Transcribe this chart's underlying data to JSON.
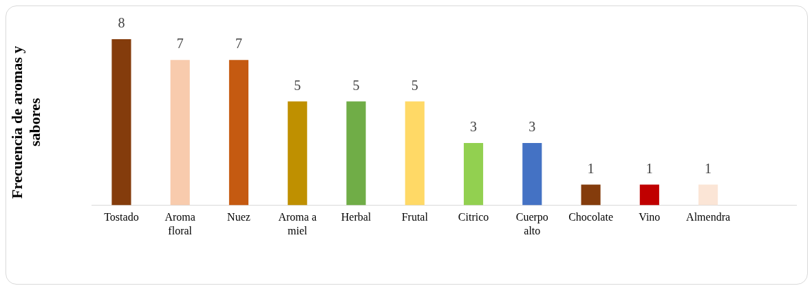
{
  "chart_data": {
    "type": "bar",
    "ylabel": "Frecuencia de aromas y sabores",
    "categories": [
      "Tostado",
      "Aroma floral",
      "Nuez",
      "Aroma a miel",
      "Herbal",
      "Frutal",
      "Citrico",
      "Cuerpo alto",
      "Chocolate",
      "Vino",
      "Almendra",
      null
    ],
    "values": [
      8,
      7,
      7,
      5,
      5,
      5,
      3,
      3,
      1,
      1,
      1,
      null
    ],
    "colors": [
      "#843c0c",
      "#f8cbad",
      "#c55a11",
      "#bf9000",
      "#70ad47",
      "#ffd966",
      "#92d050",
      "#4472c4",
      "#843c0c",
      "#c00000",
      "#fbe5d6",
      "#000000"
    ],
    "data_labels": true,
    "grid": false,
    "legend": false
  }
}
